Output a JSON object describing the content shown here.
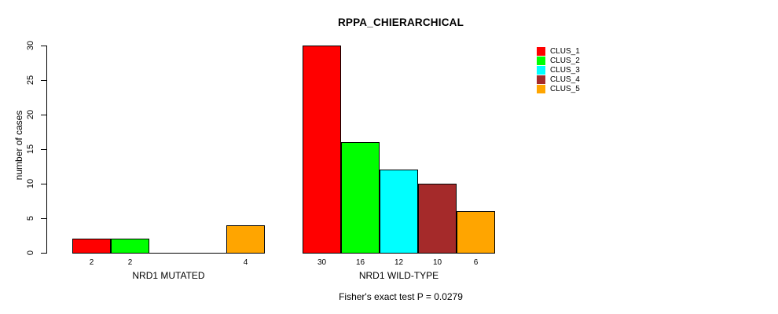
{
  "title": "RPPA_CHIERARCHICAL",
  "caption": "Fisher's exact test P = 0.0279",
  "chart_data": {
    "type": "bar",
    "title": "RPPA_CHIERARCHICAL",
    "xlabel": "",
    "ylabel": "number of cases",
    "ylim": [
      0,
      30
    ],
    "yticks": [
      0,
      5,
      10,
      15,
      20,
      25,
      30
    ],
    "grid": false,
    "legend_position": "top-right",
    "legend": [
      {
        "label": "CLUS_1",
        "color": "#ff0000"
      },
      {
        "label": "CLUS_2",
        "color": "#00ff00"
      },
      {
        "label": "CLUS_3",
        "color": "#00ffff"
      },
      {
        "label": "CLUS_4",
        "color": "#a52a2a"
      },
      {
        "label": "CLUS_5",
        "color": "#ffa500"
      }
    ],
    "groups": [
      {
        "label": "NRD1 MUTATED",
        "values": [
          2,
          2,
          0,
          0,
          4
        ]
      },
      {
        "label": "NRD1 WILD-TYPE",
        "values": [
          30,
          16,
          12,
          10,
          6
        ]
      }
    ],
    "bar_value_labels_shown_only_if_positive": true,
    "annotation": "Fisher's exact test P = 0.0279"
  }
}
